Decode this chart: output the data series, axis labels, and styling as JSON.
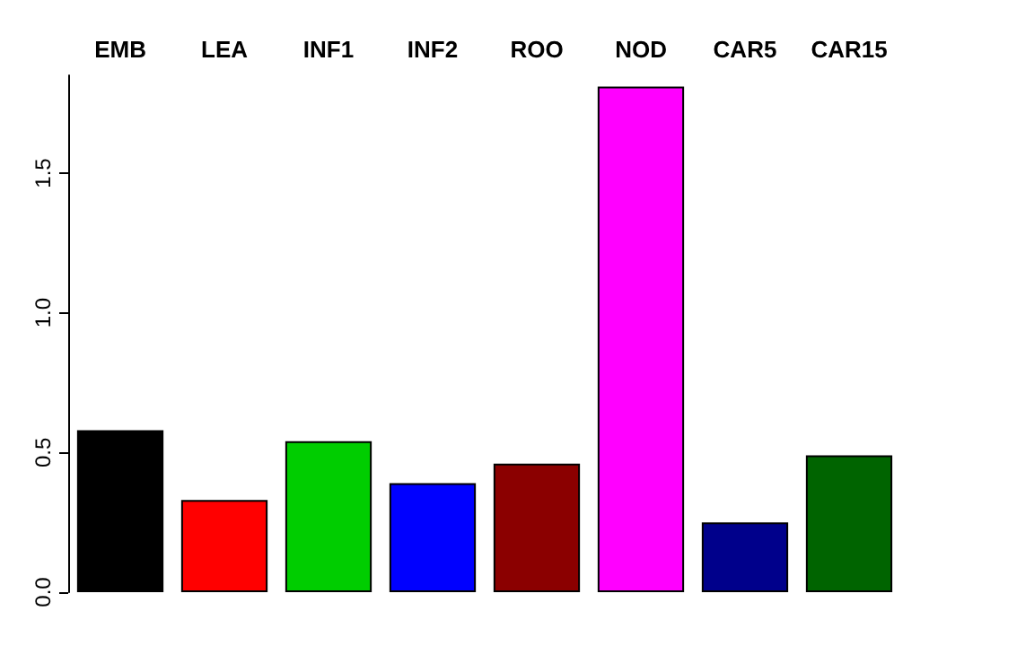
{
  "chart_data": {
    "type": "bar",
    "categories": [
      "EMB",
      "LEA",
      "INF1",
      "INF2",
      "ROO",
      "NOD",
      "CAR5",
      "CAR15"
    ],
    "values": [
      0.58,
      0.33,
      0.54,
      0.39,
      0.46,
      1.81,
      0.25,
      0.49
    ],
    "colors": [
      "#000000",
      "#ff0000",
      "#00cd00",
      "#0000ff",
      "#8b0000",
      "#ff00ff",
      "#00008b",
      "#006400"
    ],
    "ylim": [
      0,
      1.85
    ],
    "yticks": [
      {
        "value": 0,
        "label": "0.0"
      },
      0.5,
      {
        "value": 1,
        "label": "1.0"
      },
      1.5
    ],
    "grid": false
  }
}
